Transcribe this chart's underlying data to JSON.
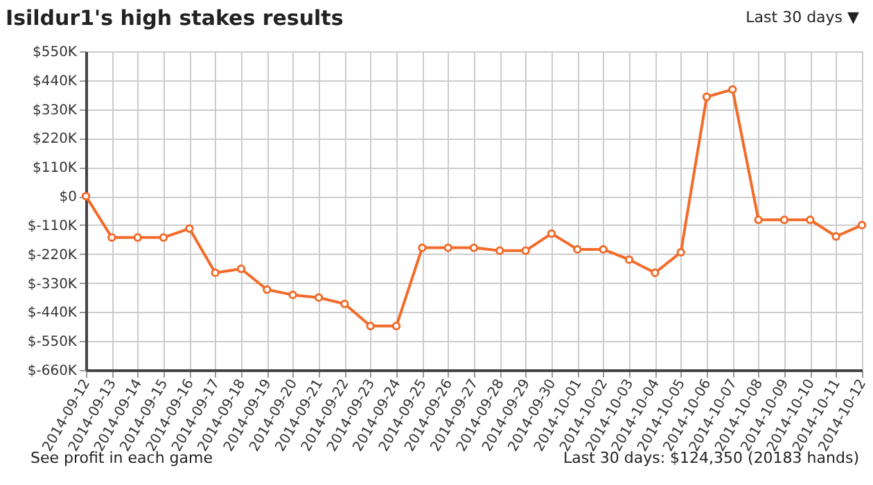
{
  "chart_data": {
    "type": "line",
    "title": "Isildur1's high stakes results",
    "categories": [
      "2014-09-12",
      "2014-09-13",
      "2014-09-14",
      "2014-09-15",
      "2014-09-16",
      "2014-09-17",
      "2014-09-18",
      "2014-09-19",
      "2014-09-20",
      "2014-09-21",
      "2014-09-22",
      "2014-09-23",
      "2014-09-24",
      "2014-09-25",
      "2014-09-26",
      "2014-09-27",
      "2014-09-28",
      "2014-09-29",
      "2014-09-30",
      "2014-10-01",
      "2014-10-02",
      "2014-10-03",
      "2014-10-04",
      "2014-10-05",
      "2014-10-06",
      "2014-10-07",
      "2014-10-08",
      "2014-10-09",
      "2014-10-10",
      "2014-10-11",
      "2014-10-12"
    ],
    "series": [
      {
        "color": "#f26b2a",
        "values": [
          0,
          -157,
          -157,
          -157,
          -123,
          -291,
          -276,
          -355,
          -375,
          -385,
          -409,
          -493,
          -493,
          -196,
          -196,
          -196,
          -207,
          -207,
          -142,
          -202,
          -202,
          -241,
          -291,
          -213,
          377,
          405,
          -90,
          -90,
          -90,
          -153,
          -110
        ]
      }
    ],
    "ylim": [
      -660,
      550
    ],
    "yticks": [
      {
        "value": 550,
        "label": "$550K"
      },
      {
        "value": 440,
        "label": "$440K"
      },
      {
        "value": 330,
        "label": "$330K"
      },
      {
        "value": 220,
        "label": "$220K"
      },
      {
        "value": 110,
        "label": "$110K"
      },
      {
        "value": 0,
        "label": "$0"
      },
      {
        "value": -110,
        "label": "$-110K"
      },
      {
        "value": -220,
        "label": "$-220K"
      },
      {
        "value": -330,
        "label": "$-330K"
      },
      {
        "value": -440,
        "label": "$-440K"
      },
      {
        "value": -550,
        "label": "$-550K"
      },
      {
        "value": -660,
        "label": "$-660K"
      }
    ],
    "grid": true,
    "marker": "circle",
    "line_style": "solid",
    "annotations": [
      "Last 30 days ▼",
      "See profit in each game",
      "Last 30 days: $124,350 (20183 hands)"
    ]
  }
}
